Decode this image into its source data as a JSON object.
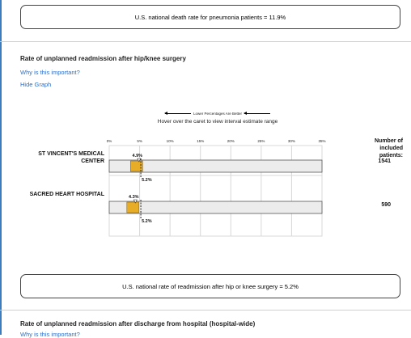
{
  "pneumonia_national": {
    "text": "U.S. national death rate for pneumonia patients = 11.9%"
  },
  "readmission_section": {
    "title": "Rate of unplanned readmission after hip/knee surgery",
    "why_link": "Why is this important?",
    "hide_graph_link": "Hide Graph"
  },
  "chart_data": {
    "type": "bar",
    "title": "",
    "legend_note": "Lower Percentages Are Better",
    "hover_instruction": "Hover over the caret to view interval estimate range",
    "xlabel": "",
    "ylabel": "",
    "axis_ticks": [
      "0%",
      "5%",
      "10%",
      "15%",
      "20%",
      "25%",
      "30%",
      "35%"
    ],
    "xlim": [
      0,
      35
    ],
    "grid": true,
    "national_rate": 5.2,
    "count_header": "Number of included patients:",
    "categories": [
      "ST VINCENT'S MEDICAL CENTER",
      "SACRED HEART HOSPITAL"
    ],
    "series": [
      {
        "values": [
          4.9,
          4.3
        ],
        "value_labels": [
          "4.9%",
          "4.3%"
        ],
        "national_labels": [
          "5.2%",
          "5.2%"
        ],
        "patient_counts": [
          "1541",
          "590"
        ]
      }
    ],
    "colors": {
      "bar": "#e8ad27",
      "bar_stroke": "#8a6512",
      "track": "#ececec",
      "grid": "#d8d8d8"
    }
  },
  "readmission_national": {
    "text": "U.S. national rate of readmission after hip or knee surgery = 5.2%"
  },
  "hospital_wide_section": {
    "title": "Rate of unplanned readmission after discharge from hospital (hospital-wide)",
    "why_link": "Why is this important?"
  }
}
